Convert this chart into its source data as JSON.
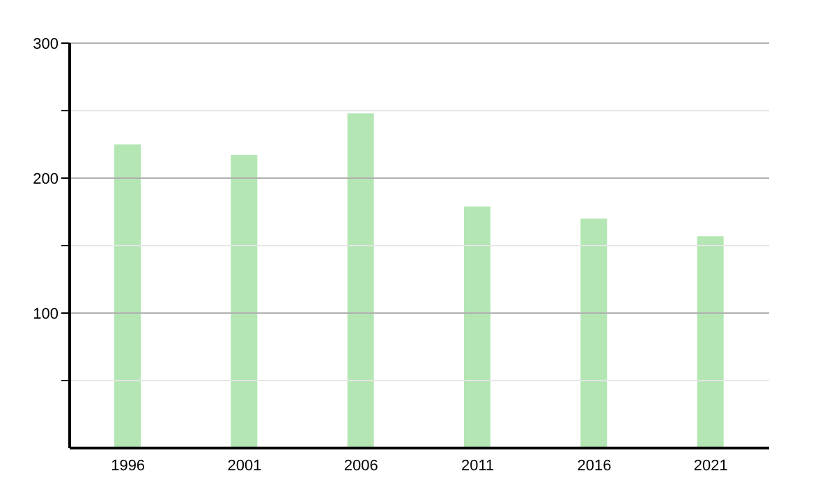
{
  "chart_data": {
    "type": "bar",
    "categories": [
      "1996",
      "2001",
      "2006",
      "2011",
      "2016",
      "2021"
    ],
    "values": [
      225,
      217,
      248,
      179,
      170,
      157
    ],
    "color": "#b3e6b3",
    "ylim": [
      0,
      300
    ],
    "yticks": [
      {
        "value": 50,
        "label": null
      },
      100,
      {
        "value": 150,
        "label": null
      },
      200,
      {
        "value": 250,
        "label": null
      },
      300
    ],
    "grid": "y"
  }
}
